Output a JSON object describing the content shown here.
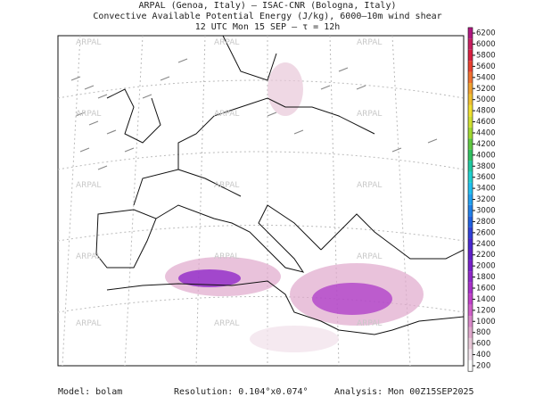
{
  "header": {
    "line1": "ARPAL (Genoa, Italy)  –  ISAC-CNR (Bologna, Italy)",
    "line2": "Convective Available Potential Energy (J/kg), 6000–10m wind shear",
    "line3": "12 UTC Mon 15 SEP  –  τ = 12h"
  },
  "watermark": "ARPAL",
  "colorbar": {
    "ticks": [
      200,
      400,
      600,
      800,
      1000,
      1200,
      1400,
      1600,
      1800,
      2000,
      2200,
      2400,
      2600,
      2800,
      3000,
      3200,
      3400,
      3600,
      3800,
      4000,
      4200,
      4400,
      4600,
      4800,
      5000,
      5200,
      5400,
      5600,
      5800,
      6000,
      6200
    ],
    "colors": [
      "#ffffff",
      "#f2e4ec",
      "#e8c8d8",
      "#e0a8cc",
      "#d888c8",
      "#d060c8",
      "#c040c8",
      "#a830c8",
      "#9028c8",
      "#7820c8",
      "#6020c8",
      "#4828d0",
      "#3040d8",
      "#2060e0",
      "#2080e8",
      "#20a0f0",
      "#20c0f0",
      "#20d0d0",
      "#20c8a0",
      "#30c060",
      "#60c840",
      "#a0d830",
      "#d0e030",
      "#f0e030",
      "#f0c030",
      "#f0a030",
      "#f07030",
      "#e84030",
      "#d82040",
      "#c82060",
      "#b01880"
    ]
  },
  "footer": {
    "model": "Model: bolam",
    "resolution": "Resolution: 0.104°x0.074°",
    "analysis": "Analysis: Mon 00Z15SEP2025"
  }
}
